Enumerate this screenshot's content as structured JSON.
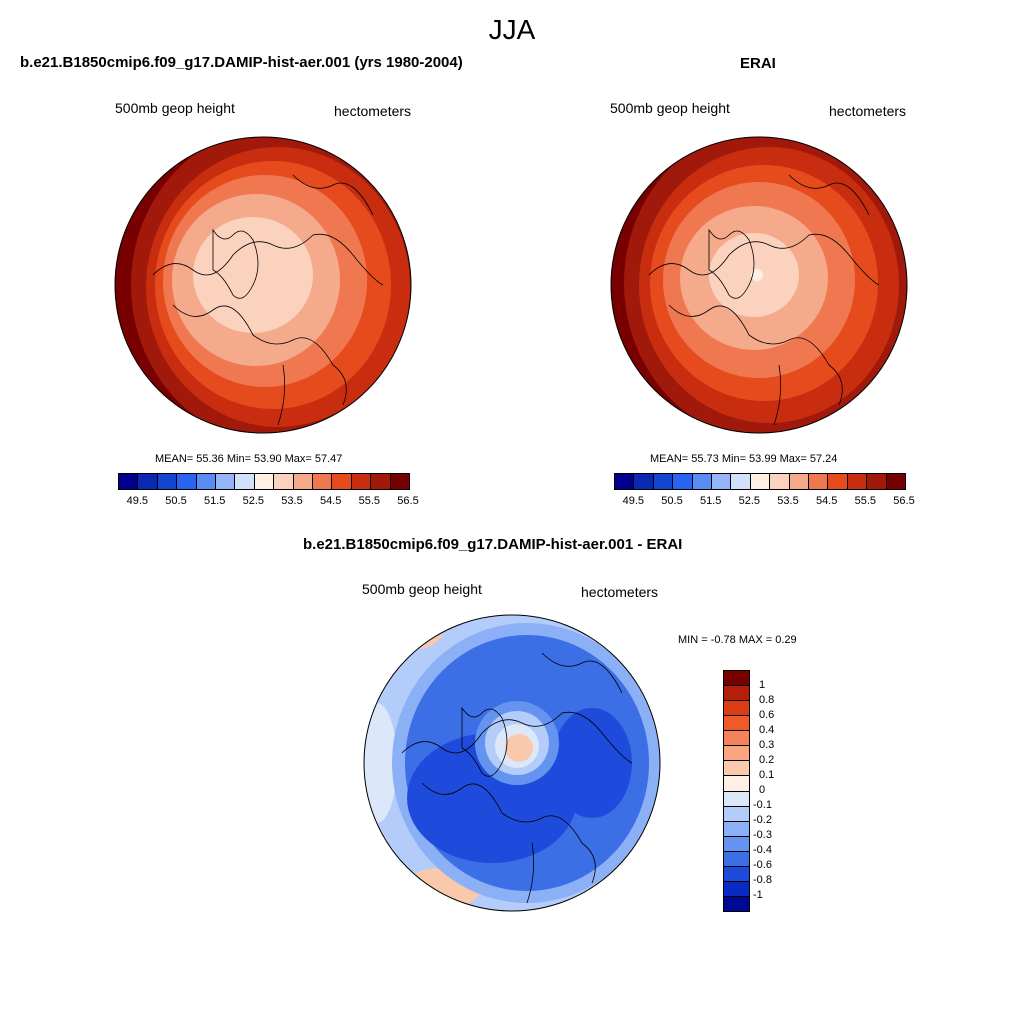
{
  "figure": {
    "title": "JJA"
  },
  "panels": [
    {
      "title": "b.e21.B1850cmip6.f09_g17.DAMIP-hist-aer.001 (yrs 1980-2004)",
      "variable": "500mb geop height",
      "units": "hectometers",
      "stats": "MEAN=  55.36  Min=  53.90  Max=  57.47"
    },
    {
      "title": "ERAI",
      "variable": "500mb geop height",
      "units": "hectometers",
      "stats": "MEAN=  55.73  Min=  53.99  Max=  57.24"
    },
    {
      "title": "b.e21.B1850cmip6.f09_g17.DAMIP-hist-aer.001 - ERAI",
      "variable": "500mb geop height",
      "units": "hectometers",
      "stats": "MIN =  -0.78 MAX =   0.29"
    }
  ],
  "colorbar_abs": {
    "colors": [
      "#00008c",
      "#0a28b4",
      "#1446d2",
      "#2864f0",
      "#5a8cf5",
      "#96b4fa",
      "#d2e1fa",
      "#fff0e6",
      "#fad2be",
      "#f5aa8c",
      "#f07850",
      "#e64b1e",
      "#c82d0f",
      "#a0190a",
      "#780000"
    ],
    "labels": [
      "49.5",
      "50.5",
      "51.5",
      "52.5",
      "53.5",
      "54.5",
      "55.5",
      "56.5"
    ]
  },
  "colorbar_diff": {
    "colors": [
      "#780000",
      "#b41e0a",
      "#dc3c14",
      "#f05a28",
      "#f5825a",
      "#faa582",
      "#fac8aa",
      "#fff0e6",
      "#dce8fa",
      "#b4ccfa",
      "#8cb0f5",
      "#6494f0",
      "#3c6ee6",
      "#1e4bdc",
      "#0a2ac3",
      "#000896"
    ],
    "labels": [
      "1",
      "0.8",
      "0.6",
      "0.4",
      "0.3",
      "0.2",
      "0.1",
      "0",
      "-0.1",
      "-0.2",
      "-0.3",
      "-0.4",
      "-0.6",
      "-0.8",
      "-1"
    ]
  }
}
